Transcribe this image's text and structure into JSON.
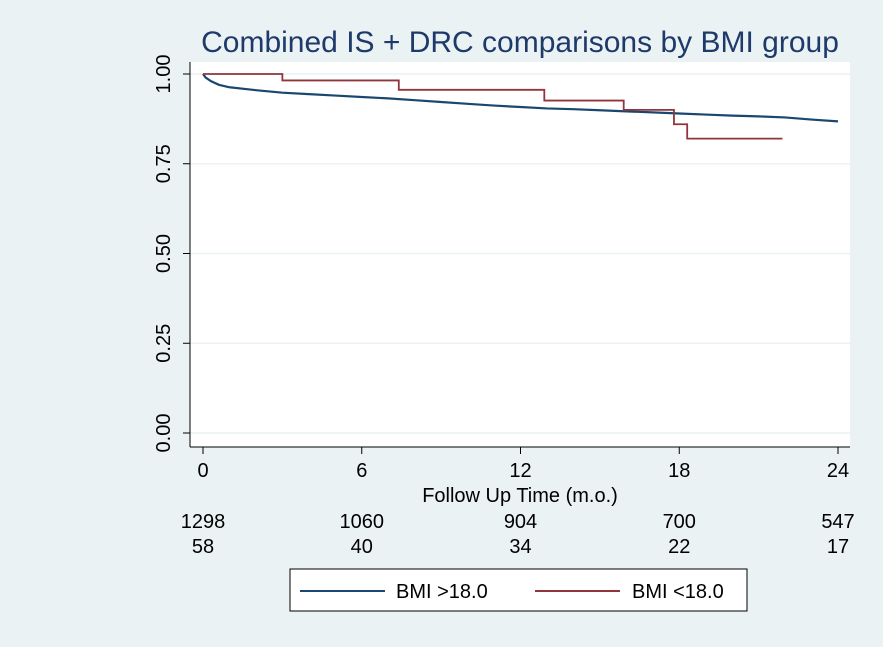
{
  "colors": {
    "background": "#eaf2f3",
    "plot_background": "#ffffff",
    "grid": "#eaf2f3",
    "series_blue": "#1a476f",
    "series_red": "#90353b",
    "text": "#000000",
    "title_color": "#1e3a6a"
  },
  "chart_data": {
    "type": "line",
    "title": "Combined IS + DRC comparisons by BMI group",
    "xlabel": "Follow Up Time (m.o.)",
    "ylabel": "",
    "xlim": [
      0,
      24
    ],
    "ylim": [
      0,
      1
    ],
    "x_ticks": [
      0,
      6,
      12,
      18,
      24
    ],
    "x_tick_labels": [
      "0",
      "6",
      "12",
      "18",
      "24"
    ],
    "y_ticks": [
      0,
      0.25,
      0.5,
      0.75,
      1
    ],
    "y_tick_labels": [
      "0.00",
      "0.25",
      "0.50",
      "0.75",
      "1.00"
    ],
    "grid": true,
    "legend_placement": "bottom",
    "series": [
      {
        "name": "BMI >18.0",
        "step": false,
        "points": [
          [
            0,
            1.0
          ],
          [
            0.1,
            0.99
          ],
          [
            0.3,
            0.98
          ],
          [
            0.6,
            0.97
          ],
          [
            1,
            0.963
          ],
          [
            2,
            0.955
          ],
          [
            3,
            0.948
          ],
          [
            4,
            0.944
          ],
          [
            5,
            0.94
          ],
          [
            6,
            0.936
          ],
          [
            7,
            0.932
          ],
          [
            8,
            0.927
          ],
          [
            9,
            0.922
          ],
          [
            10,
            0.917
          ],
          [
            11,
            0.912
          ],
          [
            12,
            0.908
          ],
          [
            13,
            0.904
          ],
          [
            14,
            0.902
          ],
          [
            15,
            0.899
          ],
          [
            16,
            0.896
          ],
          [
            17,
            0.893
          ],
          [
            18,
            0.89
          ],
          [
            19,
            0.887
          ],
          [
            20,
            0.884
          ],
          [
            21,
            0.882
          ],
          [
            22,
            0.879
          ],
          [
            23,
            0.873
          ],
          [
            24,
            0.868
          ]
        ]
      },
      {
        "name": "BMI <18.0",
        "step": true,
        "points": [
          [
            0,
            1.0
          ],
          [
            3,
            1.0
          ],
          [
            3,
            0.982
          ],
          [
            7.4,
            0.982
          ],
          [
            7.4,
            0.956
          ],
          [
            12.9,
            0.956
          ],
          [
            12.9,
            0.926
          ],
          [
            15.9,
            0.926
          ],
          [
            15.9,
            0.9
          ],
          [
            17.8,
            0.9
          ],
          [
            17.8,
            0.86
          ],
          [
            18.3,
            0.86
          ],
          [
            18.3,
            0.82
          ],
          [
            21.9,
            0.82
          ]
        ]
      }
    ],
    "risk_table": {
      "times": [
        0,
        6,
        12,
        18,
        24
      ],
      "rows": [
        {
          "series": "BMI >18.0",
          "counts": [
            "1298",
            "1060",
            "904",
            "700",
            "547"
          ]
        },
        {
          "series": "BMI <18.0",
          "counts": [
            "58",
            "40",
            "34",
            "22",
            "17"
          ]
        }
      ]
    }
  }
}
